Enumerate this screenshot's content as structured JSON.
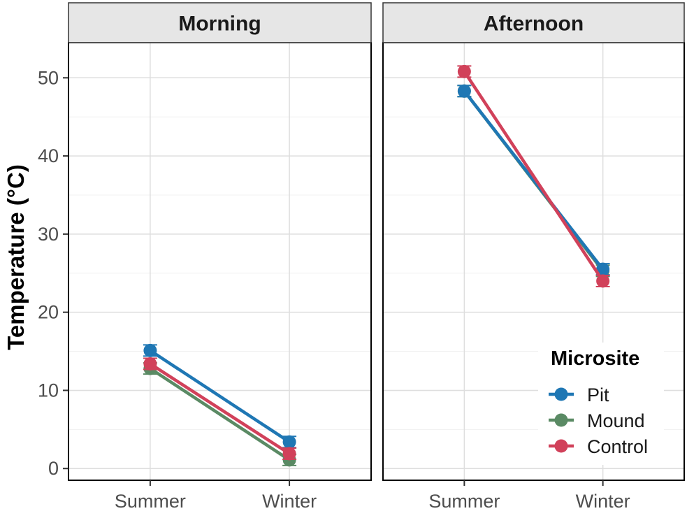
{
  "chart_data": {
    "type": "line",
    "ylabel": "Temperature (°C)",
    "xlabel": "",
    "ylim": [
      -1.5,
      54.5
    ],
    "yticks": [
      0,
      10,
      20,
      30,
      40,
      50
    ],
    "categories": [
      "Summer",
      "Winter"
    ],
    "grid": true,
    "legend": {
      "title": "Microsite",
      "position": "bottom-right",
      "entries": [
        "Pit",
        "Mound",
        "Control"
      ]
    },
    "colors": {
      "Pit": "#1f77b4",
      "Mound": "#5a8a64",
      "Control": "#d1415a"
    },
    "panels": [
      {
        "strip": "Morning",
        "series": [
          {
            "name": "Pit",
            "values": [
              15.1,
              3.4
            ]
          },
          {
            "name": "Mound",
            "values": [
              12.8,
              1.1
            ]
          },
          {
            "name": "Control",
            "values": [
              13.4,
              1.9
            ]
          }
        ]
      },
      {
        "strip": "Afternoon",
        "series": [
          {
            "name": "Pit",
            "values": [
              48.3,
              25.5
            ]
          },
          {
            "name": "Mound",
            "values": [
              48.3,
              25.3
            ]
          },
          {
            "name": "Control",
            "values": [
              50.8,
              24.0
            ]
          }
        ]
      }
    ]
  }
}
